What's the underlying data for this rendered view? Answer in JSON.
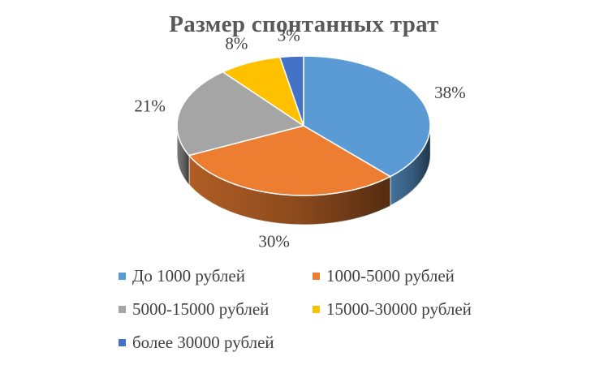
{
  "chart_data": {
    "type": "pie",
    "title": "Размер спонтанных трат",
    "categories": [
      "До 1000 рублей",
      "1000-5000  рублей",
      "5000-15000  рублей",
      "15000-30000  рублей",
      "более 30000  рублей"
    ],
    "values": [
      38,
      30,
      21,
      8,
      3
    ],
    "labels": [
      "38%",
      "30%",
      "21%",
      "8%",
      "3%"
    ],
    "colors": [
      "#5B9BD5",
      "#ED7D31",
      "#A5A5A5",
      "#FFC000",
      "#4472C4"
    ],
    "legend_position": "bottom",
    "style": "3d"
  }
}
